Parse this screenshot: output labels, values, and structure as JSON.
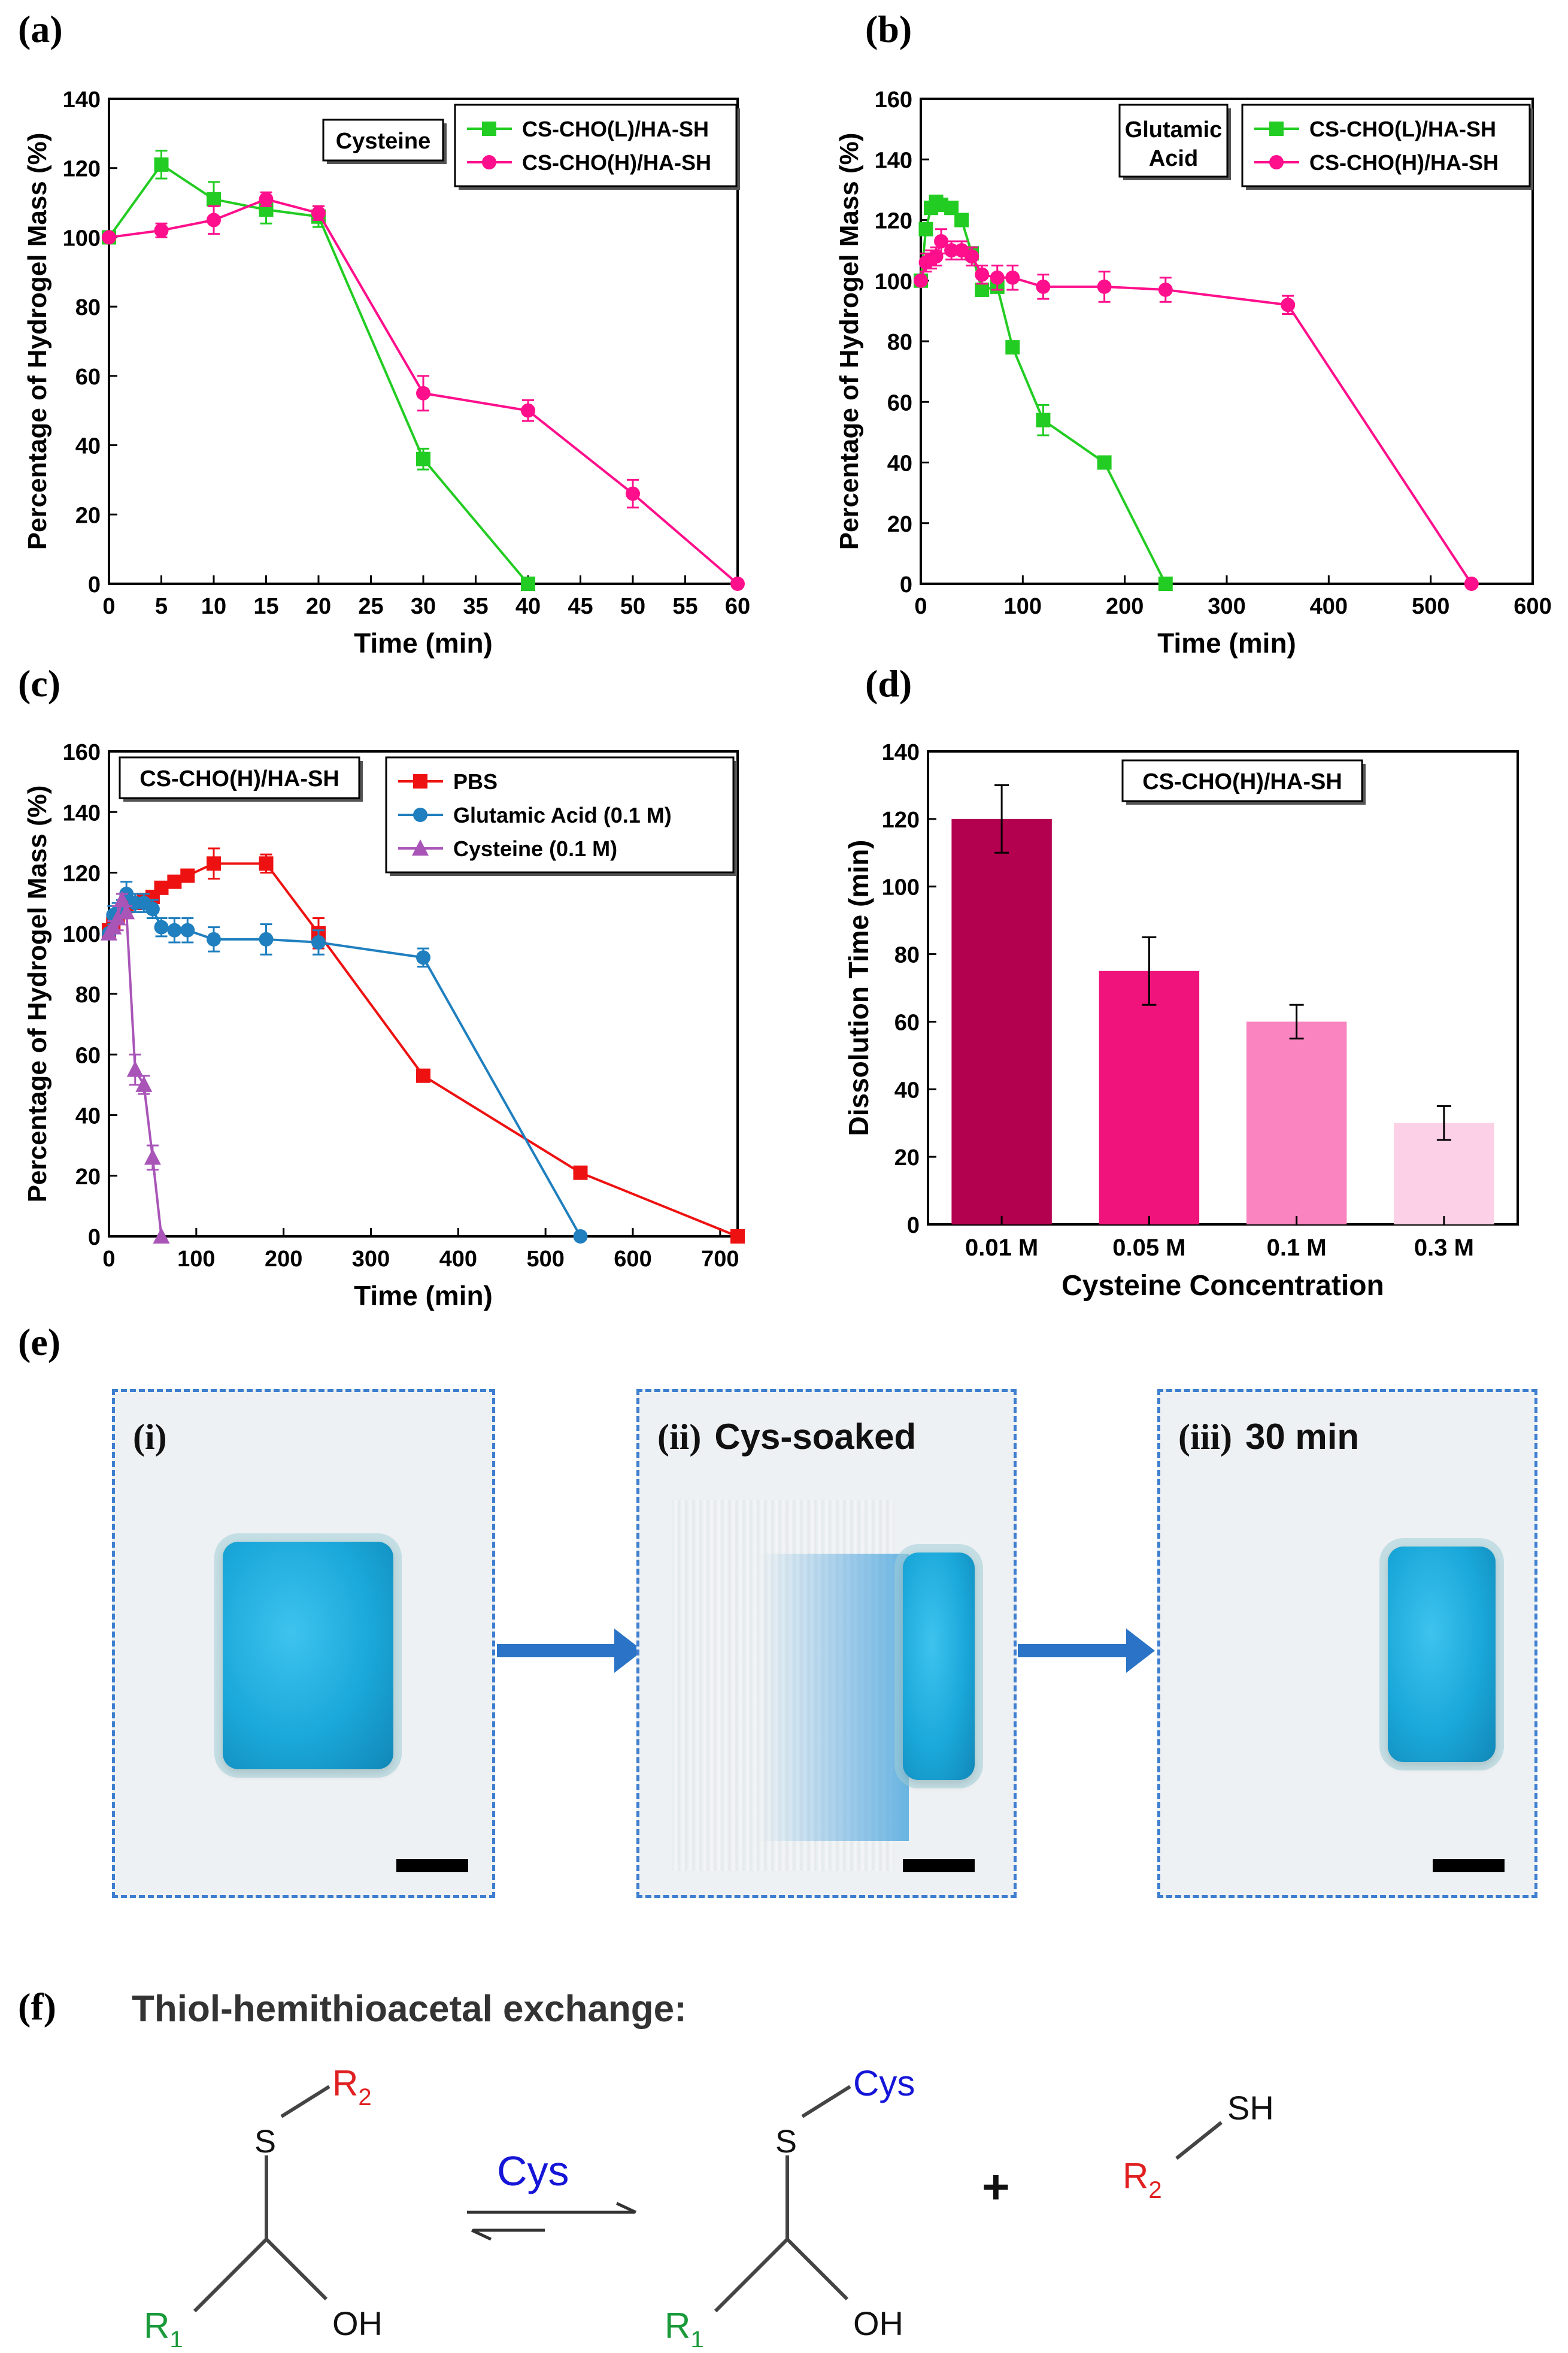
{
  "labels": {
    "a": "(a)",
    "b": "(b)",
    "c": "(c)",
    "d": "(d)",
    "e": "(e)",
    "f": "(f)"
  },
  "chart_data": [
    {
      "id": "a",
      "type": "line",
      "xlabel": "Time (min)",
      "ylabel": "Percentage of Hydrogel Mass (%)",
      "xlim": [
        0,
        60
      ],
      "ylim": [
        0,
        140
      ],
      "xticks": [
        0,
        5,
        10,
        15,
        20,
        25,
        30,
        35,
        40,
        45,
        50,
        55,
        60
      ],
      "yticks": [
        0,
        20,
        40,
        60,
        80,
        100,
        120,
        140
      ],
      "annotation": "Cysteine",
      "series": [
        {
          "name": "CS-CHO(L)/HA-SH",
          "color": "#22cc22",
          "marker": "square",
          "x": [
            0,
            5,
            10,
            15,
            20,
            30,
            40
          ],
          "y": [
            100,
            121,
            111,
            108,
            106,
            36,
            0
          ],
          "err": [
            0,
            4,
            5,
            4,
            3,
            3,
            0
          ]
        },
        {
          "name": "CS-CHO(H)/HA-SH",
          "color": "#ff0f8c",
          "marker": "circle",
          "x": [
            0,
            5,
            10,
            15,
            20,
            30,
            40,
            50,
            60
          ],
          "y": [
            100,
            102,
            105,
            111,
            107,
            55,
            50,
            26,
            0
          ],
          "err": [
            0,
            2,
            4,
            2,
            2,
            5,
            3,
            4,
            0
          ]
        }
      ]
    },
    {
      "id": "b",
      "type": "line",
      "xlabel": "Time (min)",
      "ylabel": "Percentage of Hydrogel Mass (%)",
      "xlim": [
        0,
        600
      ],
      "ylim": [
        0,
        160
      ],
      "xticks": [
        0,
        100,
        200,
        300,
        400,
        500,
        600
      ],
      "yticks": [
        0,
        20,
        40,
        60,
        80,
        100,
        120,
        140,
        160
      ],
      "annotation": "Glutamic Acid",
      "series": [
        {
          "name": "CS-CHO(L)/HA-SH",
          "color": "#22cc22",
          "marker": "square",
          "x": [
            0,
            5,
            10,
            15,
            20,
            30,
            40,
            50,
            60,
            75,
            90,
            120,
            180,
            240
          ],
          "y": [
            100,
            117,
            124,
            126,
            125,
            124,
            120,
            109,
            97,
            98,
            78,
            54,
            40,
            0
          ],
          "err": [
            0,
            2,
            2,
            2,
            2,
            2,
            2,
            2,
            2,
            2,
            2,
            5,
            2,
            0
          ]
        },
        {
          "name": "CS-CHO(H)/HA-SH",
          "color": "#ff0f8c",
          "marker": "circle",
          "x": [
            0,
            5,
            10,
            15,
            20,
            30,
            40,
            50,
            60,
            75,
            90,
            120,
            180,
            240,
            360,
            540
          ],
          "y": [
            100,
            106,
            107,
            108,
            113,
            110,
            110,
            108,
            102,
            101,
            101,
            98,
            98,
            97,
            92,
            0
          ],
          "err": [
            0,
            3,
            3,
            3,
            4,
            3,
            3,
            3,
            3,
            4,
            4,
            4,
            5,
            4,
            3,
            0
          ]
        }
      ]
    },
    {
      "id": "c",
      "type": "line",
      "xlabel": "Time (min)",
      "ylabel": "Percentage of Hydrogel Mass (%)",
      "xlim": [
        0,
        720
      ],
      "ylim": [
        0,
        160
      ],
      "xticks": [
        0,
        100,
        200,
        300,
        400,
        500,
        600,
        700
      ],
      "yticks": [
        0,
        20,
        40,
        60,
        80,
        100,
        120,
        140,
        160
      ],
      "annotation": "CS-CHO(H)/HA-SH",
      "series": [
        {
          "name": "PBS",
          "color": "#ee1111",
          "marker": "square",
          "x": [
            0,
            5,
            10,
            15,
            20,
            30,
            40,
            50,
            60,
            75,
            90,
            120,
            180,
            240,
            360,
            540,
            720
          ],
          "y": [
            101,
            103,
            105,
            107,
            109,
            110,
            111,
            112,
            115,
            117,
            119,
            123,
            123,
            100,
            53,
            21,
            0
          ],
          "err": [
            0,
            2,
            2,
            2,
            2,
            2,
            2,
            2,
            2,
            2,
            2,
            5,
            3,
            5,
            1,
            2,
            0
          ]
        },
        {
          "name": "Glutamic Acid (0.1 M)",
          "color": "#1f7fbf",
          "marker": "circle",
          "x": [
            0,
            5,
            10,
            15,
            20,
            30,
            40,
            50,
            60,
            75,
            90,
            120,
            180,
            240,
            360,
            540
          ],
          "y": [
            100,
            106,
            107,
            108,
            113,
            110,
            110,
            108,
            102,
            101,
            101,
            98,
            98,
            97,
            92,
            0
          ],
          "err": [
            0,
            3,
            3,
            3,
            4,
            3,
            3,
            3,
            3,
            4,
            4,
            4,
            5,
            4,
            3,
            0
          ]
        },
        {
          "name": "Cysteine (0.1 M)",
          "color": "#a955b8",
          "marker": "triangle",
          "x": [
            0,
            5,
            10,
            15,
            20,
            30,
            40,
            50,
            60
          ],
          "y": [
            100,
            102,
            105,
            111,
            107,
            55,
            50,
            26,
            0
          ],
          "err": [
            0,
            2,
            4,
            2,
            2,
            5,
            3,
            4,
            0
          ]
        }
      ]
    },
    {
      "id": "d",
      "type": "bar",
      "xlabel": "Cysteine Concentration",
      "ylabel": "Dissolution Time (min)",
      "ylim": [
        0,
        140
      ],
      "yticks": [
        0,
        20,
        40,
        60,
        80,
        100,
        120,
        140
      ],
      "annotation": "CS-CHO(H)/HA-SH",
      "categories": [
        "0.01 M",
        "0.05 M",
        "0.1 M",
        "0.3 M"
      ],
      "values": [
        120,
        75,
        60,
        30
      ],
      "err": [
        10,
        10,
        5,
        5
      ],
      "colors": [
        "#b3004f",
        "#f0137b",
        "#fa84bf",
        "#fcd0e6"
      ]
    }
  ],
  "photos": {
    "p1": {
      "roman": "(i)",
      "caption": ""
    },
    "p2": {
      "roman": "(ii)",
      "caption": "Cys-soaked"
    },
    "p3": {
      "roman": "(iii)",
      "caption": "30 min"
    }
  },
  "scheme": {
    "title": "Thiol-hemithioacetal exchange:",
    "S": "S",
    "OH": "OH",
    "SH": "SH",
    "R": "R",
    "one": "1",
    "two": "2",
    "cys": "Cys",
    "reagent": "Cys",
    "plus": "+"
  }
}
